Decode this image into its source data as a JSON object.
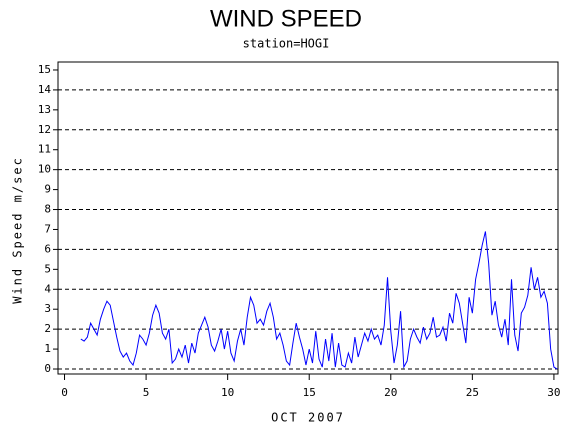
{
  "chart_data": {
    "type": "line",
    "title": "WIND SPEED",
    "subtitle": "station=HOGI",
    "x_label": "OCT 2007",
    "y_label": "Wind Speed m/sec",
    "xlim": [
      -0.4,
      30.25
    ],
    "ylim": [
      -0.25,
      15.4
    ],
    "xticks": [
      0,
      5,
      10,
      15,
      20,
      25,
      30
    ],
    "yticks": [
      0,
      1,
      2,
      3,
      4,
      5,
      6,
      7,
      8,
      9,
      10,
      11,
      12,
      13,
      14,
      15
    ],
    "grid_lines": [
      0,
      2,
      4,
      6,
      8,
      10,
      12,
      14
    ],
    "series": [
      {
        "name": "Wind Speed",
        "color": "#0000ff",
        "x": [
          1.0,
          1.2,
          1.4,
          1.6,
          1.8,
          2.0,
          2.2,
          2.4,
          2.6,
          2.8,
          3.0,
          3.2,
          3.4,
          3.6,
          3.8,
          4.0,
          4.2,
          4.4,
          4.6,
          4.8,
          5.0,
          5.2,
          5.4,
          5.6,
          5.8,
          6.0,
          6.2,
          6.4,
          6.6,
          6.8,
          7.0,
          7.2,
          7.4,
          7.6,
          7.8,
          8.0,
          8.2,
          8.4,
          8.6,
          8.8,
          9.0,
          9.2,
          9.4,
          9.6,
          9.8,
          10.0,
          10.2,
          10.4,
          10.6,
          10.8,
          11.0,
          11.2,
          11.4,
          11.6,
          11.8,
          12.0,
          12.2,
          12.4,
          12.6,
          12.8,
          13.0,
          13.2,
          13.4,
          13.6,
          13.8,
          14.0,
          14.2,
          14.4,
          14.6,
          14.8,
          15.0,
          15.2,
          15.4,
          15.6,
          15.8,
          16.0,
          16.2,
          16.4,
          16.6,
          16.8,
          17.0,
          17.2,
          17.4,
          17.6,
          17.8,
          18.0,
          18.2,
          18.4,
          18.6,
          18.8,
          19.0,
          19.2,
          19.4,
          19.6,
          19.8,
          20.0,
          20.2,
          20.4,
          20.6,
          20.8,
          21.0,
          21.2,
          21.4,
          21.6,
          21.8,
          22.0,
          22.2,
          22.4,
          22.6,
          22.8,
          23.0,
          23.2,
          23.4,
          23.6,
          23.8,
          24.0,
          24.2,
          24.4,
          24.6,
          24.8,
          25.0,
          25.2,
          25.4,
          25.6,
          25.8,
          26.0,
          26.2,
          26.4,
          26.6,
          26.8,
          27.0,
          27.2,
          27.4,
          27.6,
          27.8,
          28.0,
          28.2,
          28.4,
          28.6,
          28.8,
          29.0,
          29.2,
          29.4,
          29.6,
          29.8,
          30.0,
          30.2
        ],
        "values": [
          1.5,
          1.4,
          1.6,
          2.3,
          2.0,
          1.7,
          2.5,
          3.0,
          3.4,
          3.2,
          2.4,
          1.6,
          0.9,
          0.6,
          0.8,
          0.4,
          0.2,
          0.8,
          1.7,
          1.5,
          1.2,
          1.8,
          2.7,
          3.2,
          2.8,
          1.8,
          1.5,
          2.0,
          0.3,
          0.5,
          1.0,
          0.6,
          1.2,
          0.3,
          1.3,
          0.8,
          1.8,
          2.2,
          2.6,
          2.1,
          1.2,
          0.9,
          1.4,
          2.0,
          1.0,
          1.9,
          0.8,
          0.4,
          1.4,
          2.0,
          1.2,
          2.6,
          3.6,
          3.2,
          2.3,
          2.5,
          2.2,
          2.9,
          3.3,
          2.6,
          1.5,
          1.8,
          1.2,
          0.4,
          0.2,
          1.3,
          2.3,
          1.6,
          1.0,
          0.2,
          1.0,
          0.3,
          1.9,
          0.5,
          0.1,
          1.5,
          0.4,
          1.8,
          0.1,
          1.3,
          0.2,
          0.1,
          0.8,
          0.3,
          1.6,
          0.6,
          1.2,
          1.8,
          1.4,
          2.0,
          1.5,
          1.7,
          1.2,
          2.2,
          4.6,
          1.9,
          0.3,
          1.2,
          2.9,
          0.1,
          0.4,
          1.5,
          2.0,
          1.6,
          1.3,
          2.1,
          1.5,
          1.8,
          2.6,
          1.6,
          1.7,
          2.1,
          1.4,
          2.8,
          2.3,
          3.8,
          3.3,
          2.3,
          1.3,
          3.6,
          2.8,
          4.5,
          5.3,
          6.2,
          6.9,
          5.3,
          2.7,
          3.4,
          2.2,
          1.6,
          2.5,
          1.2,
          4.5,
          1.7,
          0.9,
          2.8,
          3.1,
          3.7,
          5.1,
          4.0,
          4.6,
          3.6,
          3.9,
          3.3,
          1.0,
          0.1,
          0.0
        ]
      }
    ]
  }
}
